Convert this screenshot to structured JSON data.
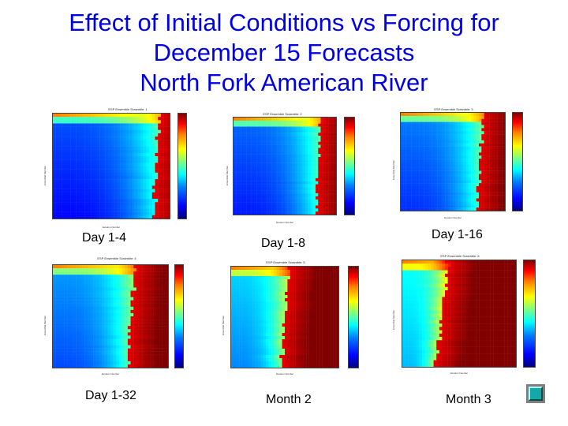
{
  "title": {
    "line1": "Effect of Initial Conditions vs Forcing for",
    "line2": "December 15 Forecasts",
    "line3": "North Fork American River"
  },
  "panels": [
    {
      "key": "day_1_4",
      "chart_title": "ESP Ensemble Scramble: 1",
      "caption": "Day 1-4",
      "xlabel": "Iteration Number",
      "ylabel": "Ensemble Member",
      "threshold": 0.92
    },
    {
      "key": "day_1_8",
      "chart_title": "ESP Ensemble Scramble: 2",
      "caption": "Day 1-8",
      "xlabel": "Iteration Number",
      "ylabel": "Ensemble Member",
      "threshold": 0.86
    },
    {
      "key": "day_1_16",
      "chart_title": "ESP Ensemble Scramble: 3",
      "caption": "Day 1-16",
      "xlabel": "Iteration Number",
      "ylabel": "Ensemble Member",
      "threshold": 0.8
    },
    {
      "key": "day_1_32",
      "chart_title": "ESP Ensemble Scramble: 4",
      "caption": "Day 1-32",
      "xlabel": "Iteration Number",
      "ylabel": "Ensemble Member",
      "threshold": 0.72
    },
    {
      "key": "month_2",
      "chart_title": "ESP Ensemble Scramble: 5",
      "caption": "Month 2",
      "xlabel": "Iteration Number",
      "ylabel": "Ensemble Member",
      "threshold": 0.55
    },
    {
      "key": "month_3",
      "chart_title": "ESP Ensemble Scramble: 6",
      "caption": "Month 3",
      "xlabel": "Iteration Number",
      "ylabel": "Ensemble Member",
      "threshold": 0.4
    }
  ],
  "colors": {
    "title": "#0000e6",
    "button_face": "#14a8a8"
  },
  "nav": {
    "icon": "next-slide-icon"
  }
}
